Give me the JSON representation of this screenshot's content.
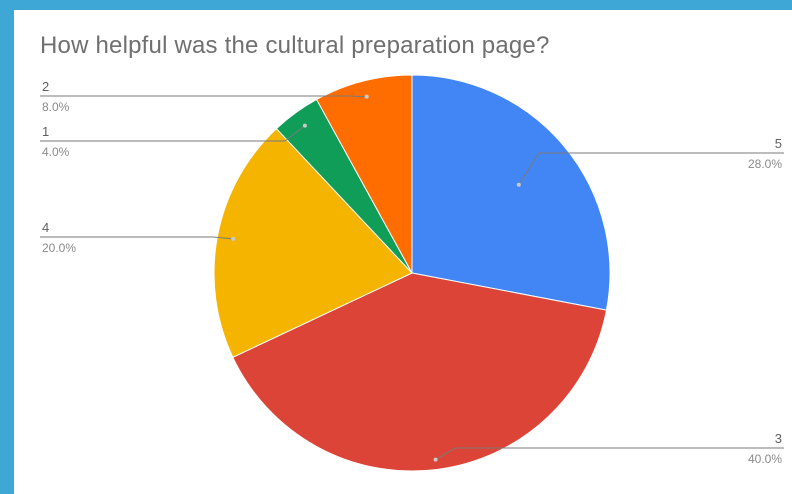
{
  "chart_data": {
    "type": "pie",
    "title": "How helpful was the cultural preparation page?",
    "categories": [
      "5",
      "3",
      "4",
      "1",
      "2"
    ],
    "values": [
      28.0,
      40.0,
      20.0,
      4.0,
      8.0
    ],
    "percent_labels": [
      "28.0%",
      "40.0%",
      "20.0%",
      "4.0%",
      "8.0%"
    ],
    "colors": [
      "#4285f4",
      "#db4437",
      "#f4b400",
      "#0f9d58",
      "#ff6d00"
    ],
    "start_angle": "12 o'clock",
    "direction": "clockwise",
    "legend": "none",
    "labels": "outside with leader lines"
  }
}
